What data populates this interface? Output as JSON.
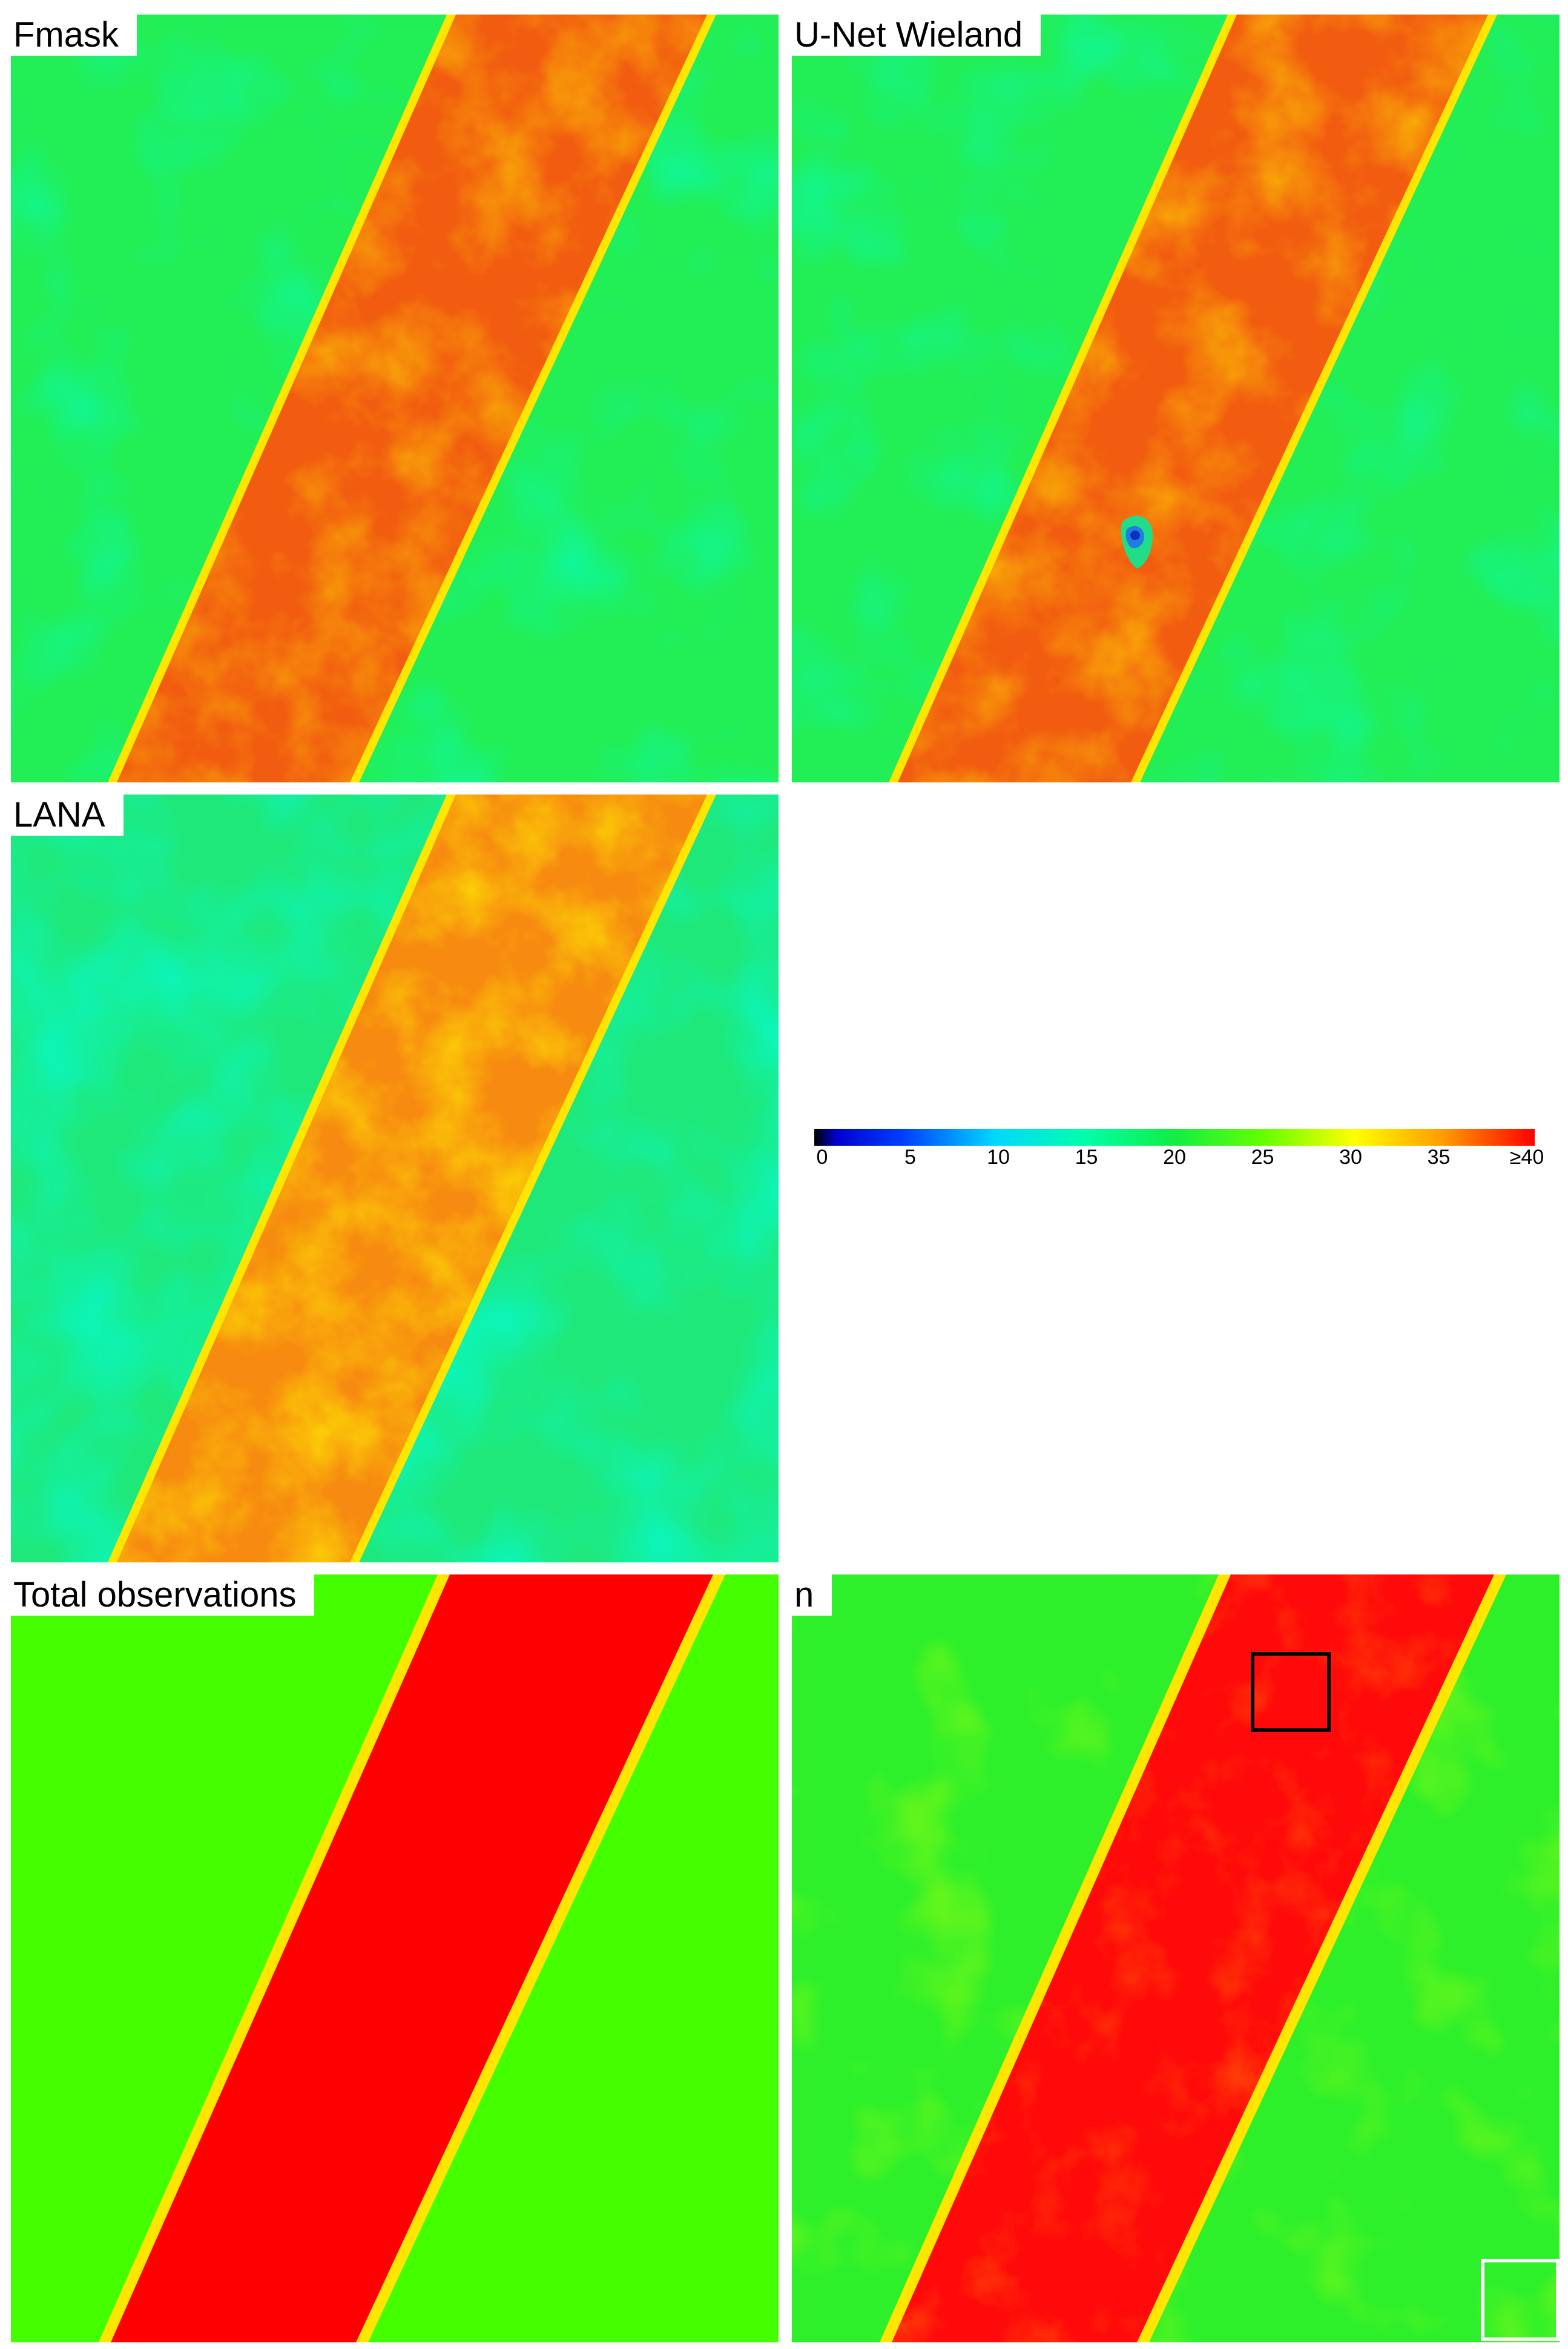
{
  "panels": [
    {
      "id": "fmask",
      "label": "Fmask",
      "variant": "mixed"
    },
    {
      "id": "unet",
      "label": "U-Net Wieland",
      "variant": "mixed-hole"
    },
    {
      "id": "lana",
      "label": "LANA",
      "variant": "cool"
    },
    {
      "id": "total",
      "label": "Total observations",
      "variant": "flat"
    },
    {
      "id": "n",
      "label": "n",
      "variant": "hot"
    }
  ],
  "colorbar": {
    "min": 0,
    "max": 40,
    "ticks": [
      "0",
      "5",
      "10",
      "15",
      "20",
      "25",
      "30",
      "35",
      "≥40"
    ]
  },
  "colors": {
    "stripe_total": "#ff0000",
    "background_total": "#44ff00",
    "edge_yellow": "#ffe600"
  }
}
